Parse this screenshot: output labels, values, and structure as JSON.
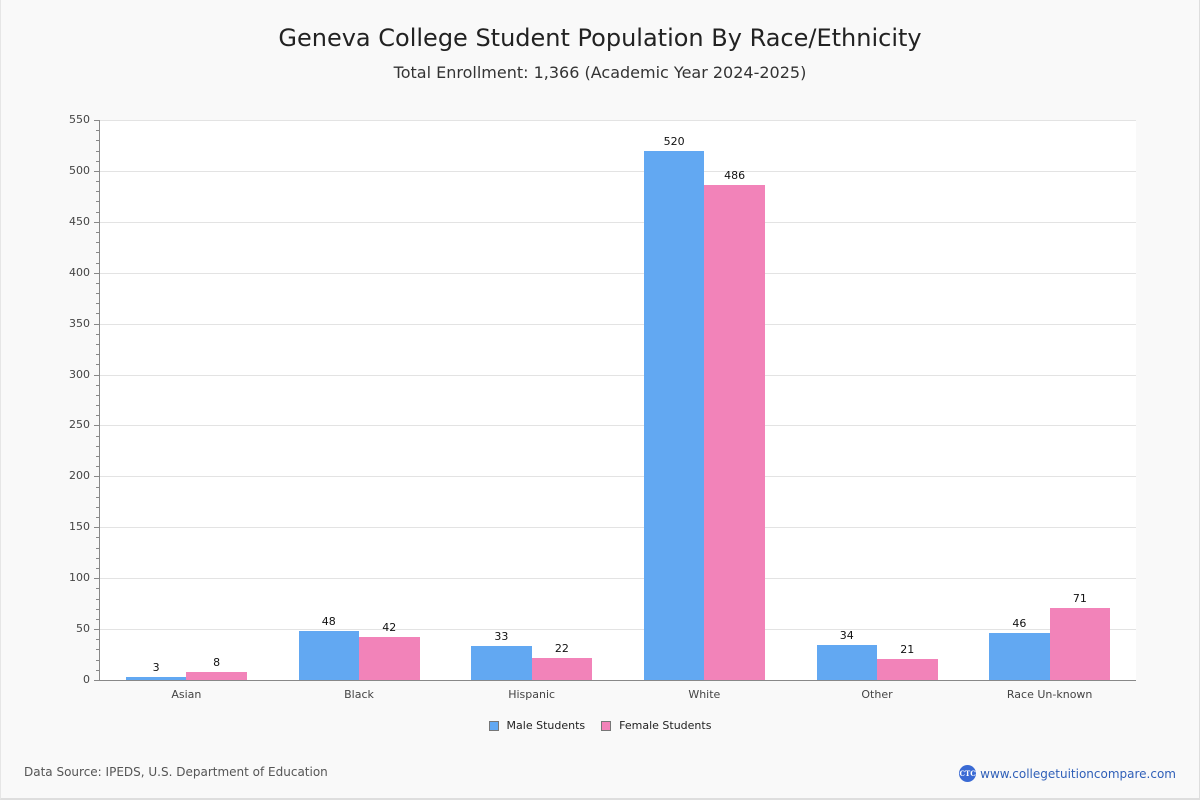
{
  "header": {
    "title": "Geneva College Student Population By Race/Ethnicity",
    "subtitle": "Total Enrollment: 1,366 (Academic Year 2024-2025)"
  },
  "legend": {
    "male": "Male Students",
    "female": "Female Students"
  },
  "footer": {
    "source": "Data Source: IPEDS, U.S. Department of Education",
    "brand_logo": "CTC",
    "brand_url": "www.collegetuitioncompare.com"
  },
  "colors": {
    "male": "#62a8f2",
    "female": "#f283b9",
    "brand": "#2f5fb8"
  },
  "chart_data": {
    "type": "bar",
    "title": "Geneva College Student Population By Race/Ethnicity",
    "subtitle": "Total Enrollment: 1,366 (Academic Year 2024-2025)",
    "xlabel": "",
    "ylabel": "",
    "categories": [
      "Asian",
      "Black",
      "Hispanic",
      "White",
      "Other",
      "Race Un-known"
    ],
    "series": [
      {
        "name": "Male Students",
        "values": [
          3,
          48,
          33,
          520,
          34,
          46
        ]
      },
      {
        "name": "Female Students",
        "values": [
          8,
          42,
          22,
          486,
          21,
          71
        ]
      }
    ],
    "ylim": [
      0,
      550
    ],
    "yticks": [
      0,
      50,
      100,
      150,
      200,
      250,
      300,
      350,
      400,
      450,
      500,
      550
    ],
    "grid": true,
    "legend_position": "bottom"
  }
}
